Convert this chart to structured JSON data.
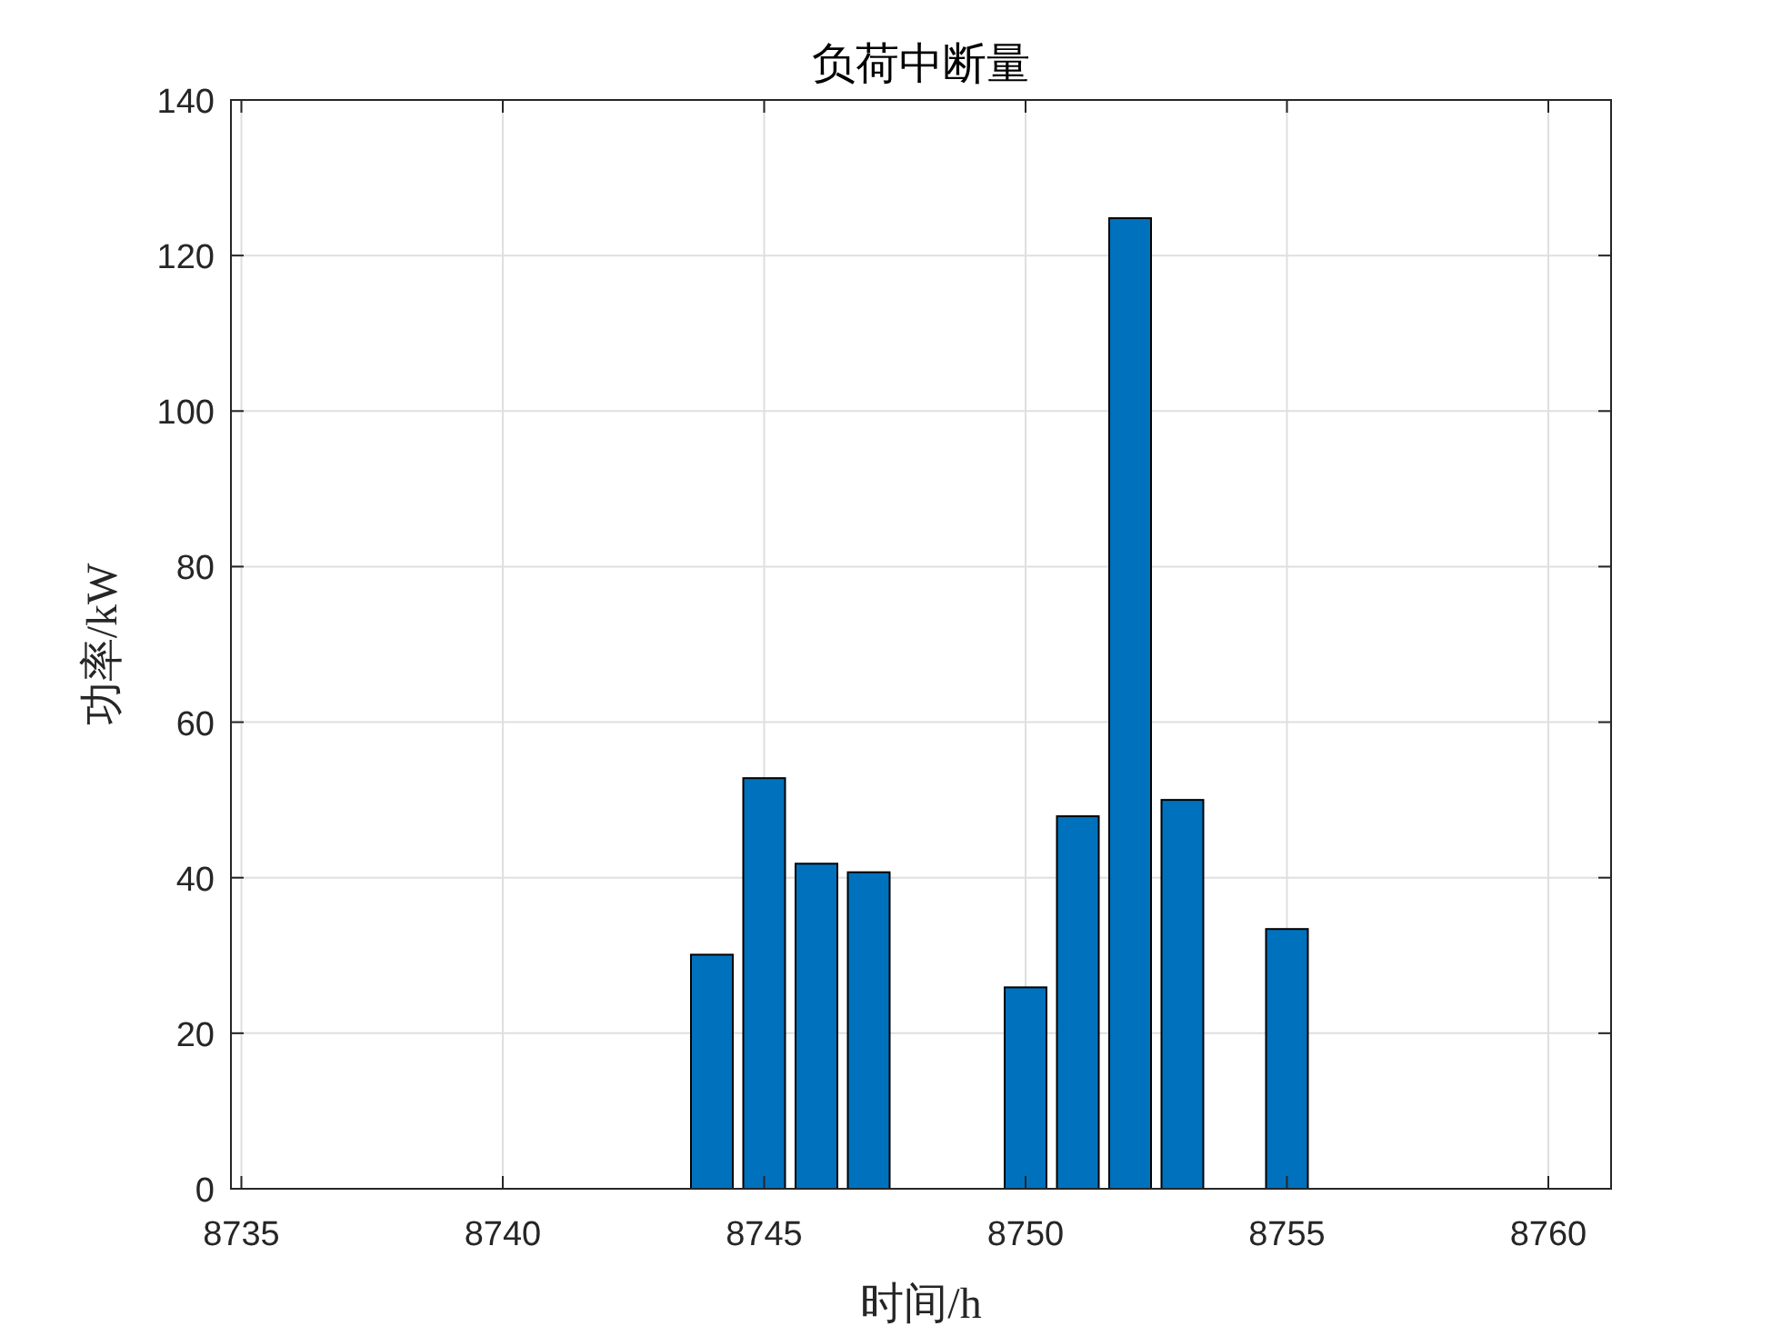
{
  "chart_data": {
    "type": "bar",
    "title": "负荷中断量",
    "xlabel": "时间/h",
    "ylabel": "功率/kW",
    "x": [
      8744,
      8745,
      8746,
      8747,
      8750,
      8751,
      8752,
      8753,
      8755
    ],
    "values": [
      30.1,
      52.8,
      41.8,
      40.7,
      25.9,
      47.9,
      124.8,
      50.0,
      33.4
    ],
    "color": "#0072bd",
    "xlim": [
      8734.8,
      8761.2
    ],
    "ylim": [
      0,
      140
    ],
    "xticks": [
      8735,
      8740,
      8745,
      8750,
      8755,
      8760
    ],
    "yticks": [
      0,
      20,
      40,
      60,
      80,
      100,
      120,
      140
    ],
    "grid": true
  }
}
